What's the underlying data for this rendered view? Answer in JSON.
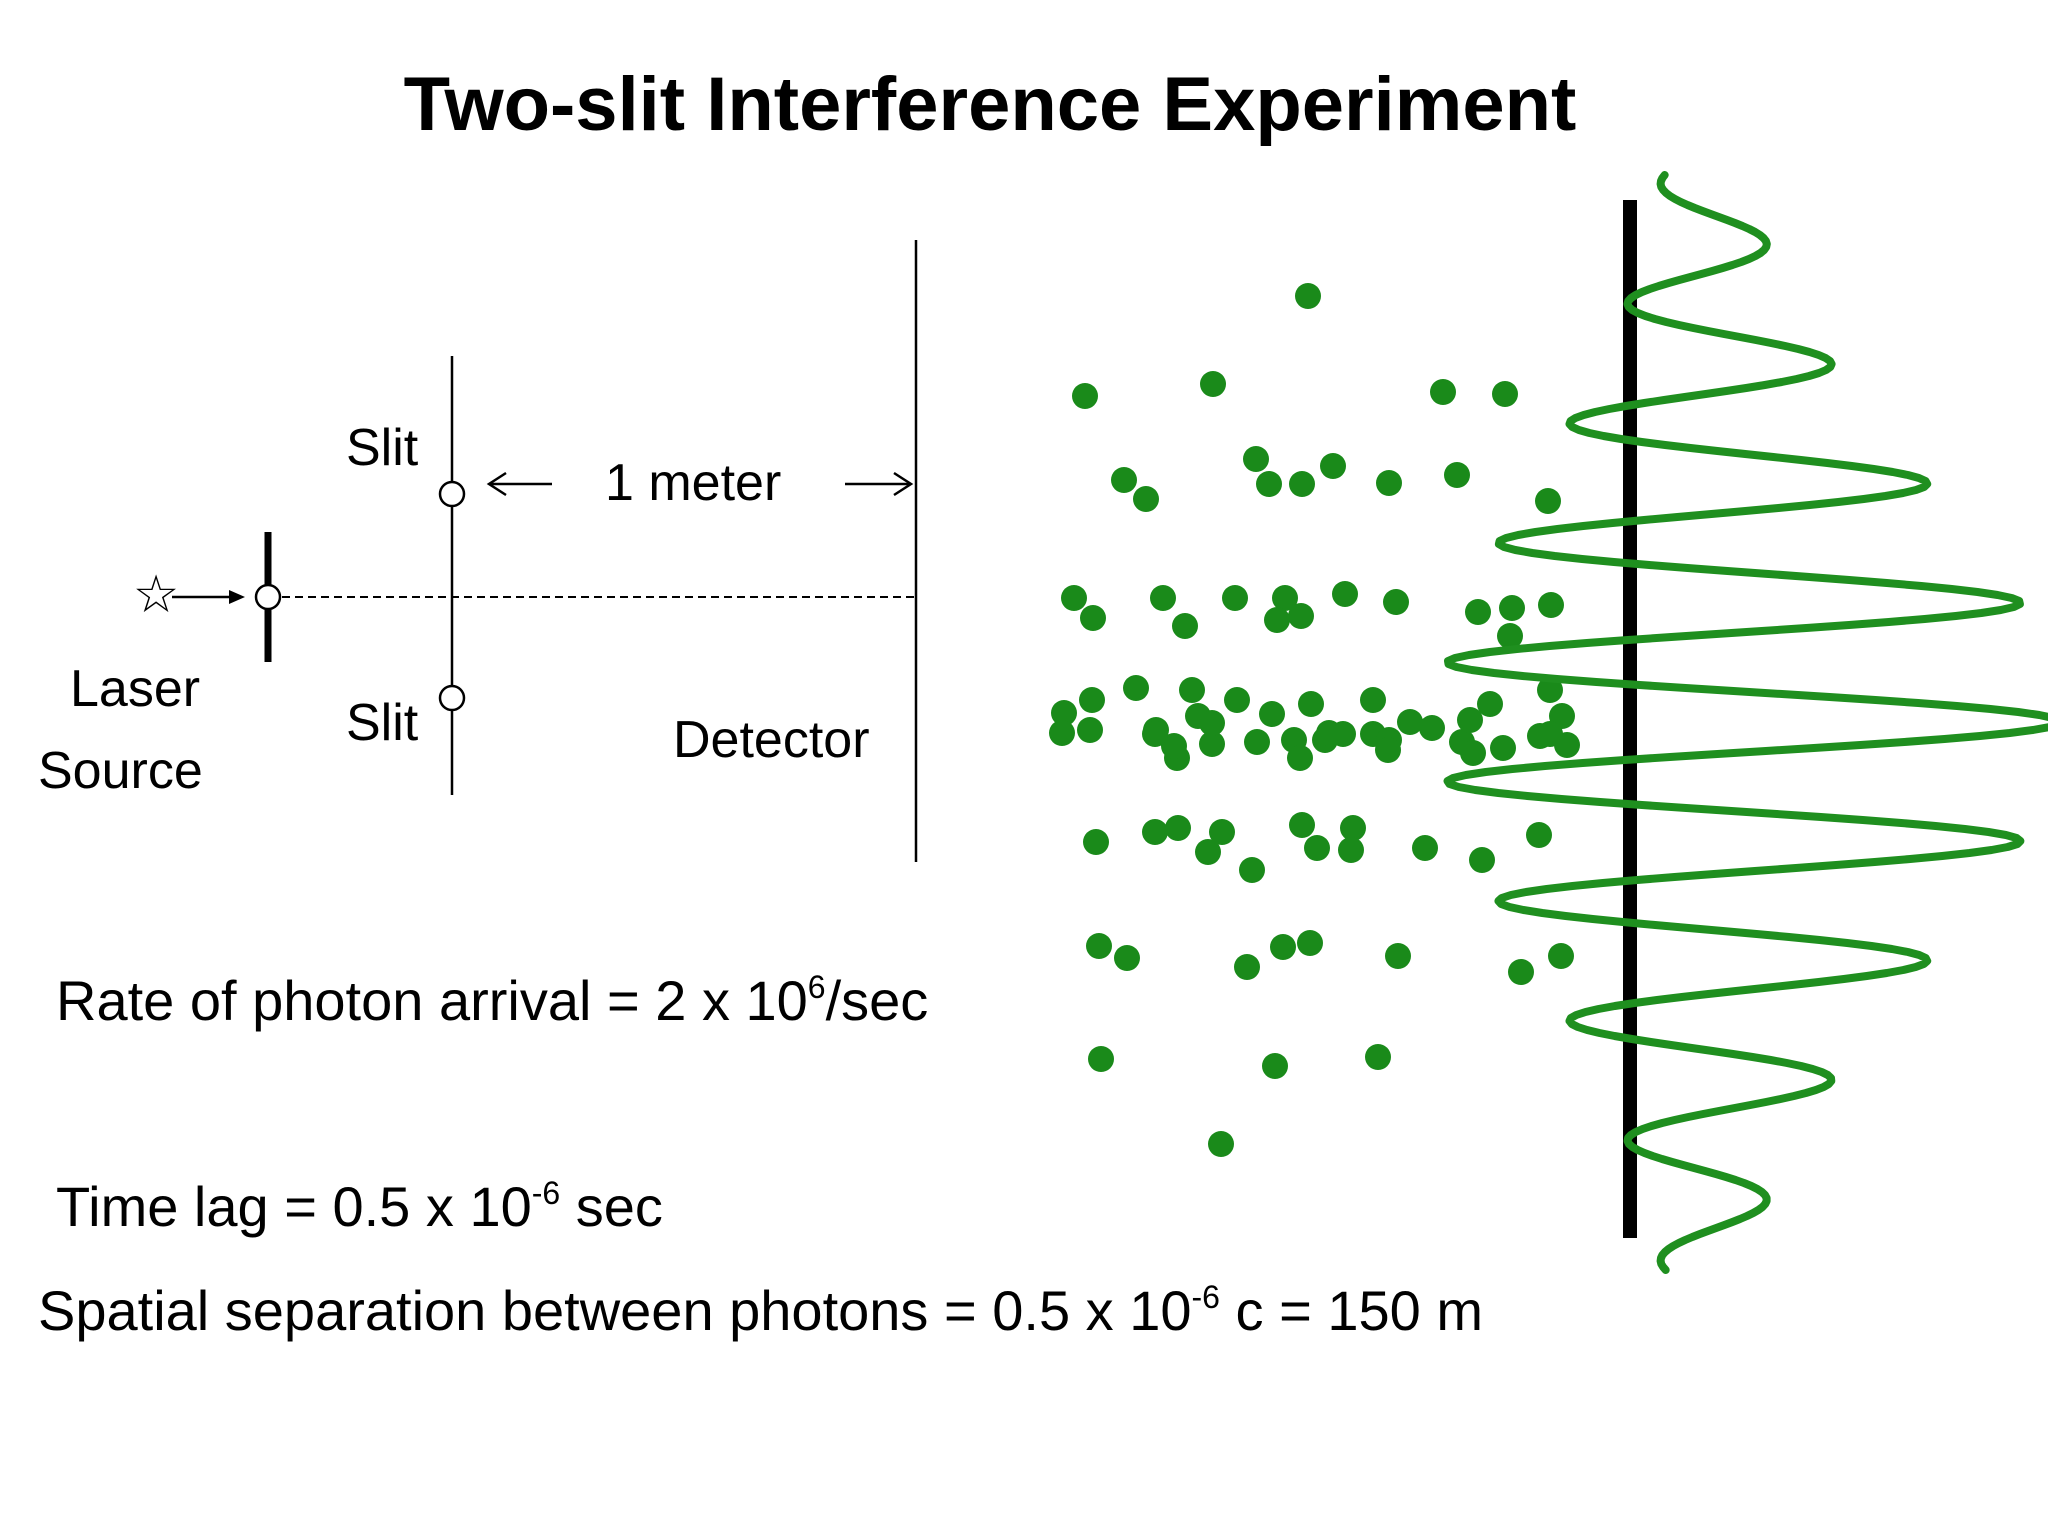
{
  "title": "Two-slit Interference Experiment",
  "labels": {
    "slit_top": "Slit",
    "slit_bottom": "Slit",
    "distance": "1 meter",
    "laser_line1": "Laser",
    "laser_line2": "Source",
    "detector": "Detector"
  },
  "equations": {
    "rate_main": "Rate of photon arrival = 2 x 10",
    "rate_exp": "6",
    "rate_unit": "/sec",
    "lag_main": "Time lag = 0.5 x 10",
    "lag_exp": "-6",
    "lag_unit": " sec",
    "sep_main": "Spatial separation between photons = 0.5 x 10",
    "sep_exp": "-6",
    "sep_unit": " c = 150 m"
  },
  "icons": {
    "source": "star-icon"
  },
  "colors": {
    "photon": "#1a8a1a",
    "wave": "#1f8f1f",
    "ink": "#000000"
  }
}
